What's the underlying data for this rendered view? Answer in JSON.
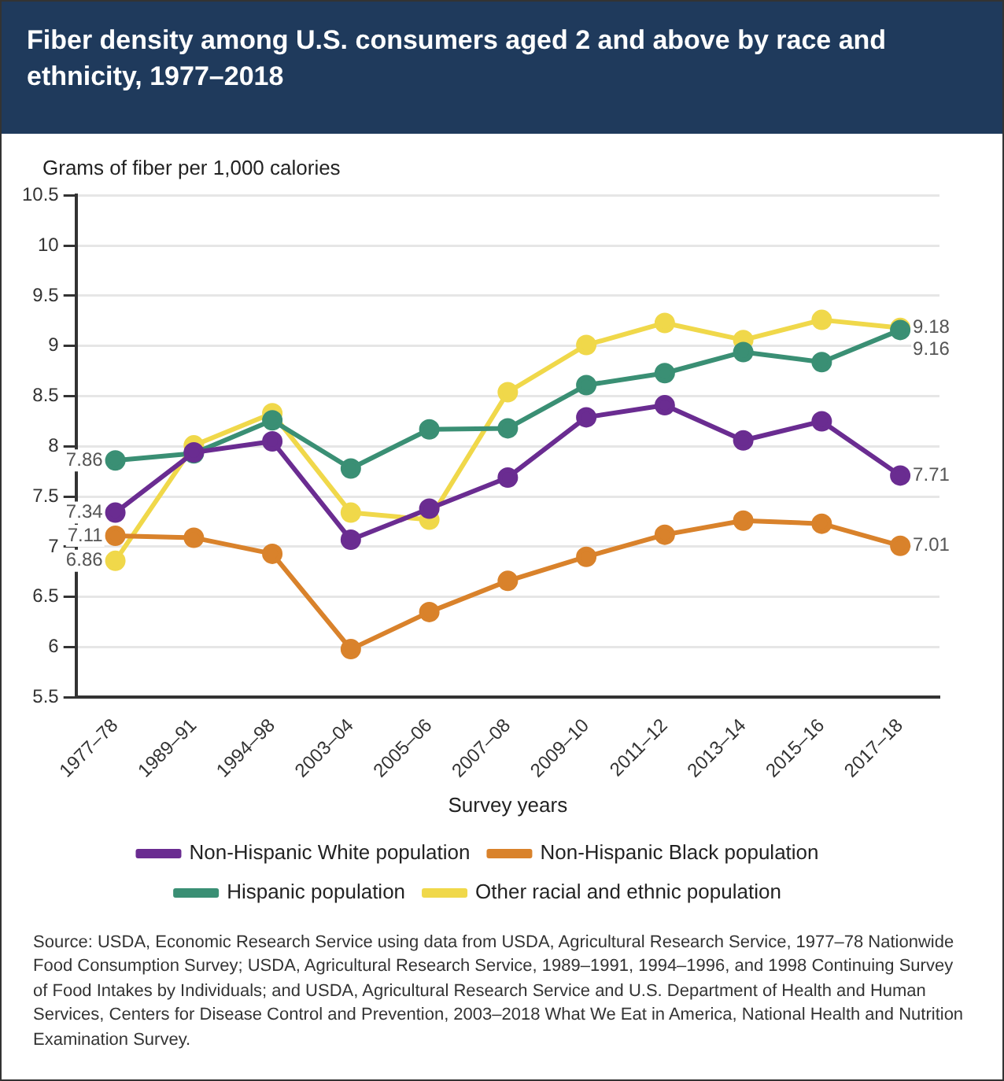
{
  "chart_data": {
    "type": "line",
    "title": "Fiber density among U.S. consumers aged 2 and above by race and ethnicity, 1977–2018",
    "ylabel": "Grams of fiber per 1,000 calories",
    "xlabel": "Survey years",
    "categories": [
      "1977–78",
      "1989–91",
      "1994–98",
      "2003–04",
      "2005–06",
      "2007–08",
      "2009–10",
      "2011–12",
      "2013–14",
      "2015–16",
      "2017–18"
    ],
    "series": [
      {
        "name": "Non-Hispanic White population",
        "color": "#6a2c91",
        "values": [
          7.34,
          7.94,
          8.05,
          7.07,
          7.38,
          7.69,
          8.29,
          8.41,
          8.06,
          8.25,
          7.71
        ],
        "value_labels": [
          "7.34",
          null,
          null,
          null,
          null,
          null,
          null,
          null,
          null,
          null,
          "7.71"
        ]
      },
      {
        "name": "Non-Hispanic Black population",
        "color": "#d9822b",
        "values": [
          7.11,
          7.09,
          6.93,
          5.98,
          6.35,
          6.66,
          6.9,
          7.12,
          7.26,
          7.23,
          7.01
        ],
        "value_labels": [
          "7.11",
          null,
          null,
          null,
          null,
          null,
          null,
          null,
          null,
          null,
          "7.01"
        ]
      },
      {
        "name": "Hispanic population",
        "color": "#3a8f74",
        "values": [
          7.86,
          7.93,
          8.26,
          7.78,
          8.17,
          8.18,
          8.61,
          8.73,
          8.94,
          8.84,
          9.16
        ],
        "value_labels": [
          "7.86",
          null,
          null,
          null,
          null,
          null,
          null,
          null,
          null,
          null,
          "9.16"
        ]
      },
      {
        "name": "Other racial and ethnic population",
        "color": "#f0d84a",
        "values": [
          6.86,
          8.01,
          8.33,
          7.34,
          7.27,
          8.54,
          9.01,
          9.23,
          9.06,
          9.26,
          9.18
        ],
        "value_labels": [
          "6.86",
          null,
          null,
          null,
          null,
          null,
          null,
          null,
          null,
          null,
          "9.18"
        ]
      }
    ],
    "ylim": [
      5.5,
      10.5
    ],
    "yticks": [
      5.5,
      6,
      6.5,
      7,
      7.5,
      8,
      8.5,
      9,
      9.5,
      10,
      10.5
    ],
    "grid": "y",
    "legend": "bottom",
    "marker": "circle",
    "line_style": "solid",
    "annotations": [
      "Source: USDA, Economic Research Service using data from USDA, Agricultural Research Service, 1977–78 Nationwide Food Consumption Survey; USDA, Agricultural Research Service, 1989–1991, 1994–1996, and 1998 Continuing Survey of Food Intakes by Individuals; and USDA, Agricultural Research Service and U.S. Department of Health and Human Services, Centers for Disease Control and Prevention, 2003–2018 What We Eat in America, National Health and Nutrition Examination Survey."
    ]
  }
}
